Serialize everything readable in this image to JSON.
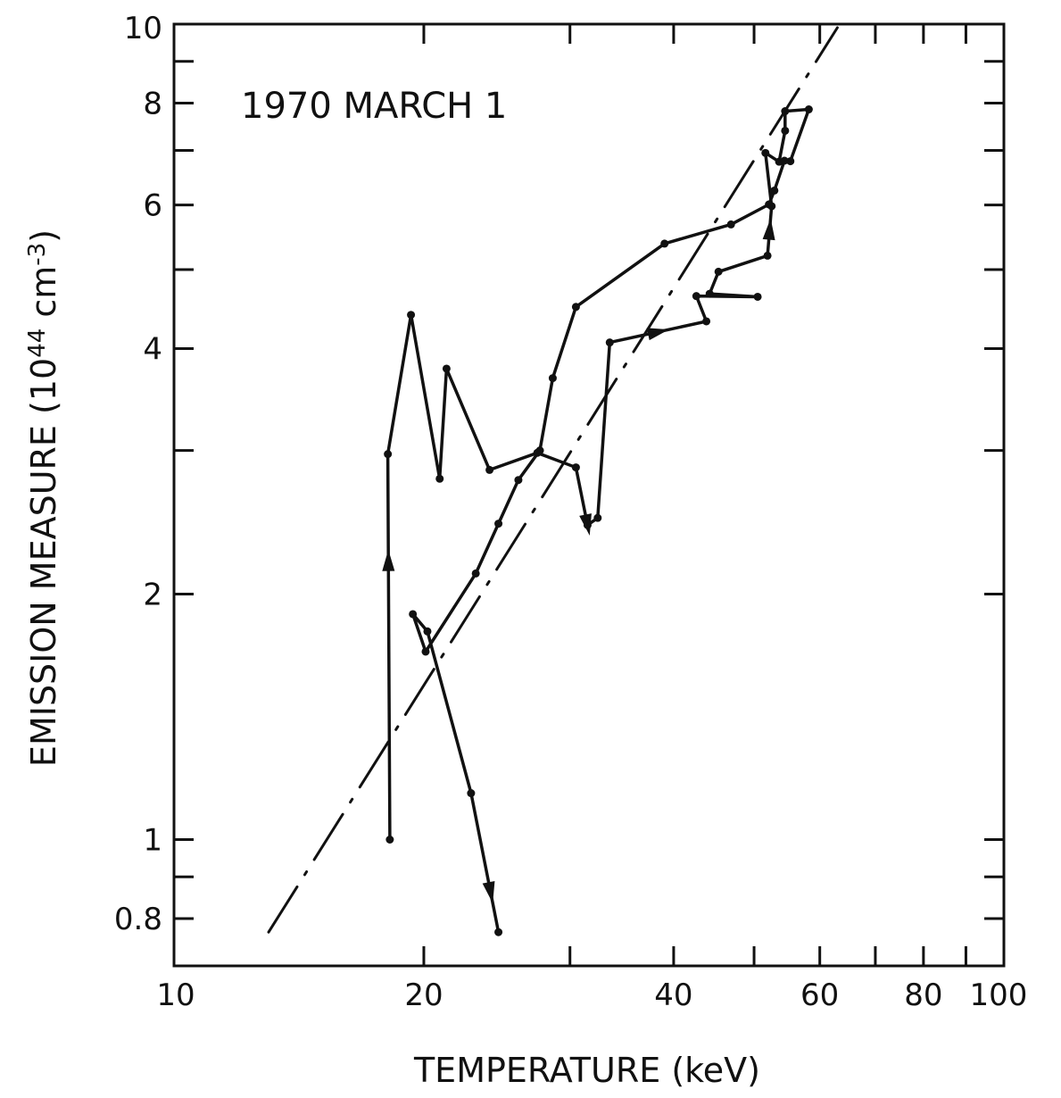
{
  "chart_data": {
    "type": "line",
    "title": "",
    "annotation": "1970 MARCH 1",
    "xlabel": "TEMPERATURE (keV)",
    "ylabel": "EMISSION MEASURE (10^44 cm^-3)",
    "ylabel_parts": {
      "prefix": "EMISSION MEASURE (10",
      "exp1": "44",
      "mid": " cm",
      "exp2": "-3",
      "suffix": ")"
    },
    "x_scale": "log",
    "y_scale": "log",
    "xlim": [
      10,
      100
    ],
    "ylim": [
      0.7,
      10
    ],
    "x_tick_labels": [
      {
        "value": 10,
        "label": "10"
      },
      {
        "value": 20,
        "label": "20"
      },
      {
        "value": 40,
        "label": "40"
      },
      {
        "value": 60,
        "label": "60"
      },
      {
        "value": 80,
        "label": "80"
      },
      {
        "value": 100,
        "label": "100"
      }
    ],
    "y_tick_labels": [
      {
        "value": 0.8,
        "label": "0.8"
      },
      {
        "value": 1,
        "label": "1"
      },
      {
        "value": 2,
        "label": "2"
      },
      {
        "value": 4,
        "label": "4"
      },
      {
        "value": 6,
        "label": "6"
      },
      {
        "value": 8,
        "label": "8"
      },
      {
        "value": 10,
        "label": "10"
      }
    ],
    "x_minor_ticks": [
      20,
      30,
      40,
      50,
      60,
      70,
      80,
      90
    ],
    "y_minor_ticks": [
      0.8,
      0.9,
      1,
      2,
      3,
      4,
      5,
      6,
      7,
      8,
      9
    ],
    "grid": false,
    "series": [
      {
        "line_style": "solid",
        "markers": true,
        "x": [
          18.2,
          18.1,
          19.3,
          20.9,
          21.3,
          24.0,
          27.4,
          30.5,
          31.5,
          32.4,
          33.5,
          43.8,
          42.6,
          50.5,
          44.2,
          45.3,
          51.9,
          52.5,
          51.6,
          53.6,
          54.5,
          54.5,
          58.2,
          55.3,
          54.4,
          52.9,
          52.1,
          46.9,
          39.0,
          30.5,
          28.6,
          27.6,
          26.0,
          24.6,
          23.1,
          20.1,
          19.4,
          20.2,
          22.8,
          24.6
        ],
        "y": [
          1.0,
          2.97,
          4.4,
          2.77,
          3.78,
          2.84,
          2.98,
          2.86,
          2.43,
          2.48,
          4.07,
          4.32,
          4.64,
          4.63,
          4.67,
          4.97,
          5.2,
          5.98,
          6.95,
          6.78,
          7.4,
          7.82,
          7.86,
          6.79,
          6.8,
          6.25,
          6.01,
          5.68,
          5.38,
          4.5,
          3.68,
          3.0,
          2.76,
          2.44,
          2.12,
          1.7,
          1.89,
          1.8,
          1.14,
          0.77
        ],
        "arrows": [
          {
            "x": 18.15,
            "y": 2.2
          },
          {
            "x": 38.0,
            "y": 4.38
          },
          {
            "x": 53.0,
            "y": 5.6
          },
          {
            "x": 28.0,
            "y": 2.35
          },
          {
            "x": 24.0,
            "y": 0.86
          }
        ]
      },
      {
        "line_style": "dash-dot",
        "markers": false,
        "x": [
          13.0,
          63.0
        ],
        "y": [
          0.77,
          9.9
        ]
      }
    ]
  }
}
